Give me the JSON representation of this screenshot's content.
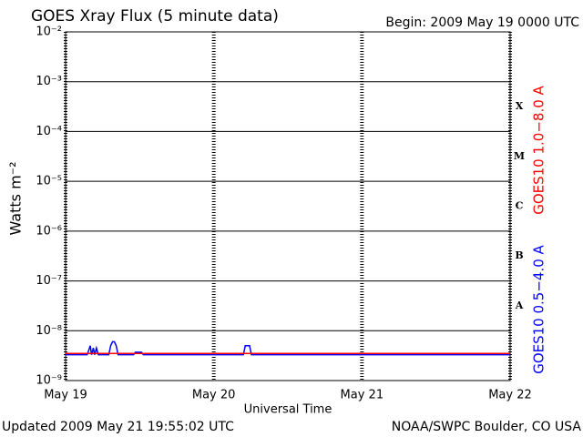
{
  "chart_data": {
    "type": "line",
    "title": "GOES Xray Flux (5 minute data)",
    "subtitle": "Begin:  2009 May 19 0000 UTC",
    "x_label": "Universal Time",
    "y_label": "Watts m⁻²",
    "footer_left": "Updated 2009 May 21 19:55:02 UTC",
    "footer_right": "NOAA/SWPC Boulder, CO USA",
    "yscale": "log",
    "grid": true,
    "xlim": [
      0,
      72
    ],
    "xticks": [
      {
        "value": 0,
        "label": "May 19"
      },
      {
        "value": 24,
        "label": "May 20"
      },
      {
        "value": 48,
        "label": "May 21"
      },
      {
        "value": 72,
        "label": "May 22"
      }
    ],
    "ylim": [
      1e-09,
      0.01
    ],
    "yticks": [
      {
        "value": 1e-09,
        "label": "10⁻⁹"
      },
      {
        "value": 1e-08,
        "label": "10⁻⁸"
      },
      {
        "value": 1e-07,
        "label": "10⁻⁷"
      },
      {
        "value": 1e-06,
        "label": "10⁻⁶"
      },
      {
        "value": 1e-05,
        "label": "10⁻⁵"
      },
      {
        "value": 0.0001,
        "label": "10⁻⁴"
      },
      {
        "value": 0.001,
        "label": "10⁻³"
      },
      {
        "value": 0.01,
        "label": "10⁻²"
      }
    ],
    "flare_classes": [
      {
        "value": 1e-08,
        "label": "A"
      },
      {
        "value": 1e-07,
        "label": "B"
      },
      {
        "value": 1e-06,
        "label": "C"
      },
      {
        "value": 1e-05,
        "label": "M"
      },
      {
        "value": 0.0001,
        "label": "X"
      }
    ],
    "series": [
      {
        "name": "GOES10 0.5−4.0 A",
        "color": "#0000ff",
        "x": [
          0,
          3.5,
          4.0,
          4.2,
          4.5,
          4.7,
          5.0,
          5.3,
          7.0,
          7.3,
          7.6,
          7.9,
          8.2,
          8.5,
          11.0,
          11.3,
          12.3,
          12.6,
          24,
          28.8,
          29.1,
          29.8,
          30.1,
          72
        ],
        "values": [
          3.3e-09,
          3.3e-09,
          5e-09,
          3.3e-09,
          4.5e-09,
          3.3e-09,
          4.5e-09,
          3.3e-09,
          3.3e-09,
          5e-09,
          6e-09,
          6e-09,
          5e-09,
          3.3e-09,
          3.3e-09,
          3.7e-09,
          3.7e-09,
          3.3e-09,
          3.3e-09,
          3.3e-09,
          5e-09,
          5e-09,
          3.3e-09,
          3.3e-09
        ]
      },
      {
        "name": "GOES10 1.0−8.0 A",
        "color": "#ff0000",
        "x": [
          0,
          72
        ],
        "values": [
          3.5e-09,
          3.5e-09
        ]
      }
    ]
  }
}
